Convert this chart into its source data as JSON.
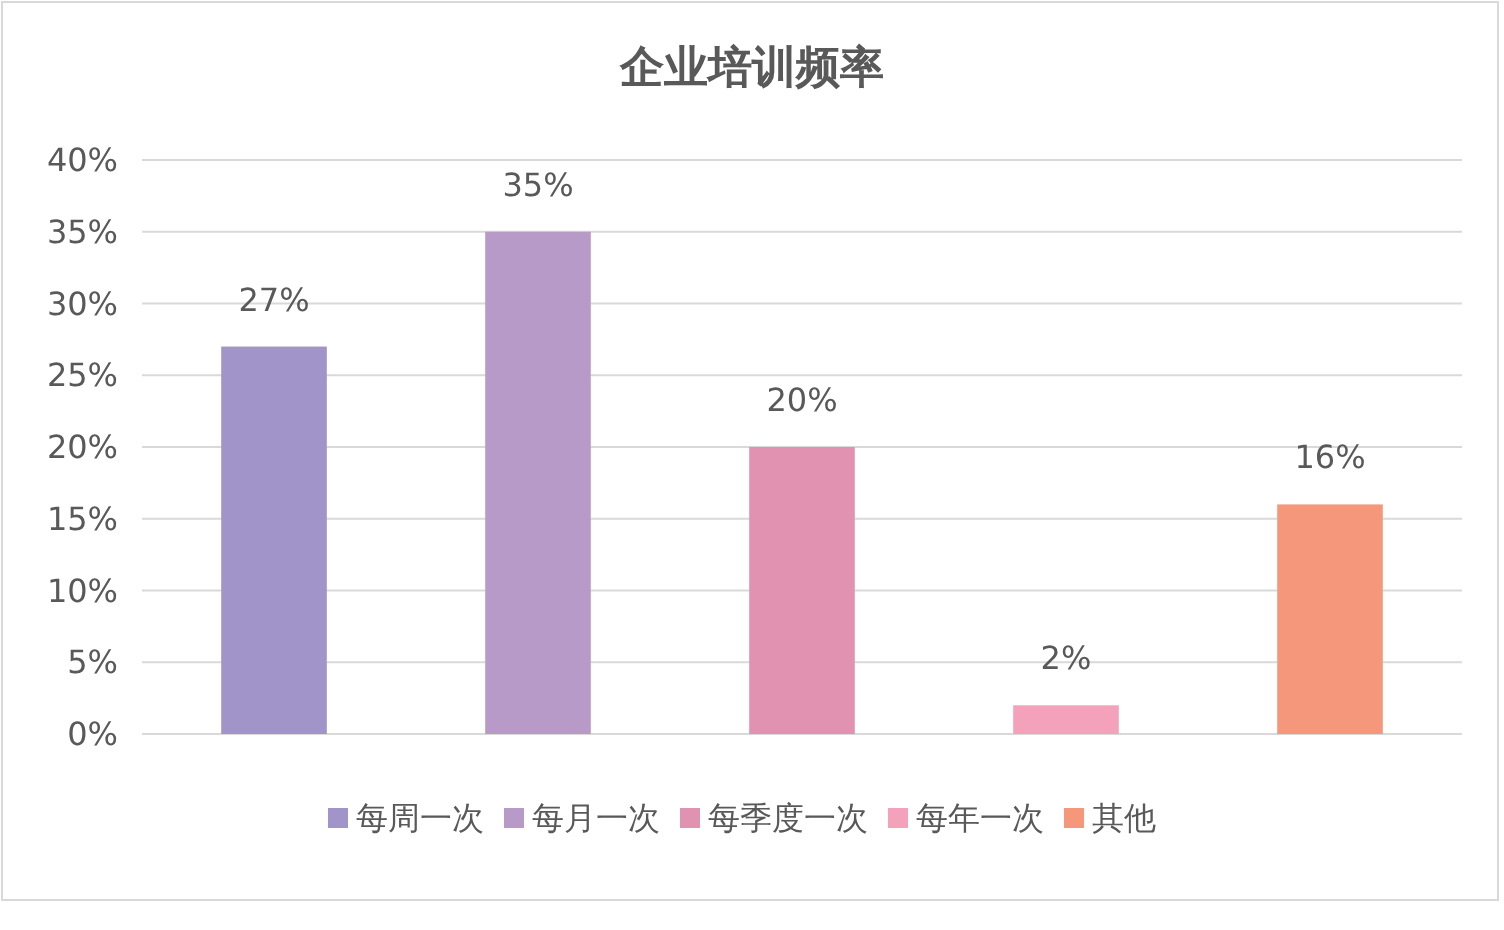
{
  "chart_data": {
    "type": "bar",
    "title": "企业培训频率",
    "categories": [
      null,
      null,
      null,
      null,
      null
    ],
    "series": [
      {
        "name": "每周一次",
        "color": "#a094c8",
        "values": [
          27,
          null,
          null,
          null,
          null
        ],
        "value_labels": [
          "27%",
          null,
          null,
          null,
          null
        ]
      },
      {
        "name": "每月一次",
        "color": "#b89ac8",
        "values": [
          null,
          35,
          null,
          null,
          null
        ],
        "value_labels": [
          null,
          "35%",
          null,
          null,
          null
        ]
      },
      {
        "name": "每季度一次",
        "color": "#e092b0",
        "values": [
          null,
          null,
          20,
          null,
          null
        ],
        "value_labels": [
          null,
          null,
          "20%",
          null,
          null
        ]
      },
      {
        "name": "每年一次",
        "color": "#f4a2bc",
        "values": [
          null,
          null,
          null,
          2,
          null
        ],
        "value_labels": [
          null,
          null,
          null,
          "2%",
          null
        ]
      },
      {
        "name": "其他",
        "color": "#f4977a",
        "values": [
          null,
          null,
          null,
          null,
          16
        ],
        "value_labels": [
          null,
          null,
          null,
          null,
          "16%"
        ]
      }
    ],
    "ylim": [
      0,
      40
    ],
    "yticks": [
      {
        "value": 0,
        "label": "0%"
      },
      {
        "value": 5,
        "label": "5%"
      },
      {
        "value": 10,
        "label": "10%"
      },
      {
        "value": 15,
        "label": "15%"
      },
      {
        "value": 20,
        "label": "20%"
      },
      {
        "value": 25,
        "label": "25%"
      },
      {
        "value": 30,
        "label": "30%"
      },
      {
        "value": 35,
        "label": "35%"
      },
      {
        "value": 40,
        "label": "40%"
      }
    ],
    "grid": "y",
    "legend": "bottom",
    "tick_labels": "y"
  }
}
